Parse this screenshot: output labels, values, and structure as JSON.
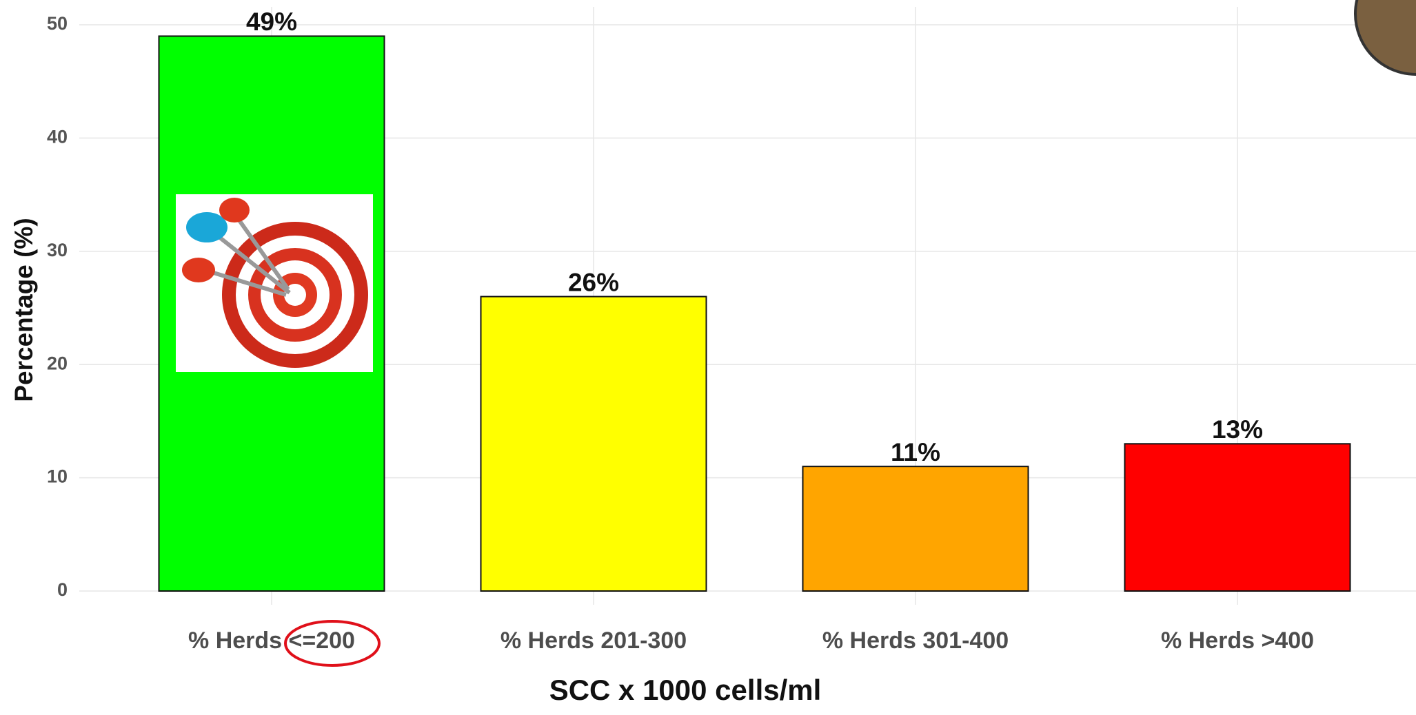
{
  "chart_data": {
    "type": "bar",
    "categories": [
      "% Herds <=200",
      "% Herds 201-300",
      "% Herds 301-400",
      "% Herds >400"
    ],
    "values": [
      49,
      26,
      11,
      13
    ],
    "value_labels": [
      "49%",
      "26%",
      "11%",
      "13%"
    ],
    "colors": [
      "#00ff00",
      "#ffff00",
      "#ffa500",
      "#ff0000"
    ],
    "ylim": [
      0,
      50
    ],
    "yticks": [
      0,
      10,
      20,
      30,
      40,
      50
    ],
    "grid": true,
    "y_label": "Percentage (%)",
    "x_label": "SCC x 1000 cells/ml"
  }
}
